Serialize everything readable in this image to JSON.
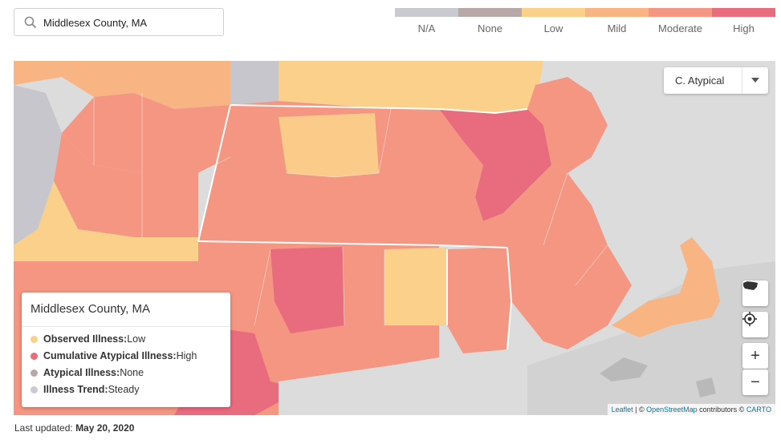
{
  "search": {
    "value": "Middlesex County, MA",
    "icon": "search-icon"
  },
  "legend": {
    "items": [
      {
        "label": "N/A",
        "color": "#c9c9d0"
      },
      {
        "label": "None",
        "color": "#b8a8a8"
      },
      {
        "label": "Low",
        "color": "#fbd08a"
      },
      {
        "label": "Mild",
        "color": "#f8b483"
      },
      {
        "label": "Moderate",
        "color": "#f49682"
      },
      {
        "label": "High",
        "color": "#e86b7e"
      }
    ]
  },
  "map": {
    "layer_select": {
      "value": "C. Atypical"
    },
    "controls": {
      "zoom_in": "+",
      "zoom_out": "−"
    },
    "attribution": {
      "leaflet": "Leaflet",
      "sep1": " | © ",
      "osm": "OpenStreetMap",
      "mid": " contributors © ",
      "carto": "CARTO"
    }
  },
  "popup": {
    "title": "Middlesex County, MA",
    "rows": [
      {
        "label": "Observed Illness:",
        "value": " Low",
        "color": "#fbd08a"
      },
      {
        "label": "Cumulative Atypical Illness:",
        "value": " High",
        "color": "#e86b7e"
      },
      {
        "label": "Atypical Illness:",
        "value": " None",
        "color": "#b8a8a8"
      },
      {
        "label": "Illness Trend:",
        "value": " Steady",
        "color": "#c9c9d0"
      }
    ]
  },
  "footer": {
    "prefix": "Last updated: ",
    "date": "May 20, 2020"
  }
}
